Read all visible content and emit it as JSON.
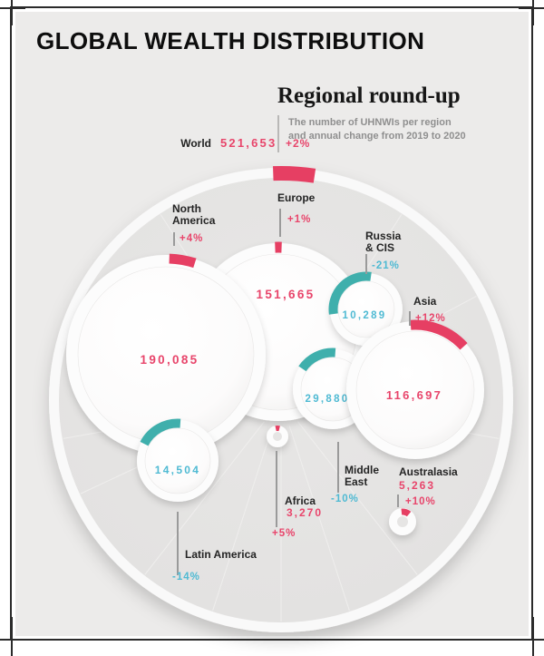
{
  "header": {
    "page_title": "GLOBAL WEALTH DISTRIBUTION"
  },
  "colors": {
    "positive": "#e8456b",
    "positive_arc": "#e63f63",
    "negative_arc": "#3fafac",
    "negative_text": "#4fbad3",
    "label": "#242424",
    "page_bg": "#ecebea",
    "world_fill": "#e5e4e3"
  },
  "chart_data": {
    "type": "bubble",
    "title": "Regional round-up",
    "subtitle": [
      "The number of UHNWIs per region",
      "and annual change from 2019 to 2020"
    ],
    "world": {
      "name": "World",
      "value": 521653,
      "value_display": "521,653",
      "change_pct": 2,
      "change_display": "+2%",
      "direction": "up"
    },
    "regions": [
      {
        "id": "north-america",
        "name_lines": [
          "North",
          "America"
        ],
        "value": 190085,
        "value_display": "190,085",
        "change_pct": 4,
        "change_display": "+4%",
        "direction": "up"
      },
      {
        "id": "europe",
        "name_lines": [
          "Europe"
        ],
        "value": 151665,
        "value_display": "151,665",
        "change_pct": 1,
        "change_display": "+1%",
        "direction": "up"
      },
      {
        "id": "asia",
        "name_lines": [
          "Asia"
        ],
        "value": 116697,
        "value_display": "116,697",
        "change_pct": 12,
        "change_display": "+12%",
        "direction": "up"
      },
      {
        "id": "middle-east",
        "name_lines": [
          "Middle",
          "East"
        ],
        "value": 29880,
        "value_display": "29,880",
        "change_pct": -10,
        "change_display": "-10%",
        "direction": "down"
      },
      {
        "id": "latin-america",
        "name_lines": [
          "Latin America"
        ],
        "value": 14504,
        "value_display": "14,504",
        "change_pct": -14,
        "change_display": "-14%",
        "direction": "down"
      },
      {
        "id": "russia-cis",
        "name_lines": [
          "Russia",
          "& CIS"
        ],
        "value": 10289,
        "value_display": "10,289",
        "change_pct": -21,
        "change_display": "-21%",
        "direction": "down"
      },
      {
        "id": "australasia",
        "name_lines": [
          "Australasia"
        ],
        "value": 5263,
        "value_display": "5,263",
        "change_pct": 10,
        "change_display": "+10%",
        "direction": "up"
      },
      {
        "id": "africa",
        "name_lines": [
          "Africa"
        ],
        "value": 3270,
        "value_display": "3,270",
        "change_pct": 5,
        "change_display": "+5%",
        "direction": "up"
      }
    ]
  }
}
